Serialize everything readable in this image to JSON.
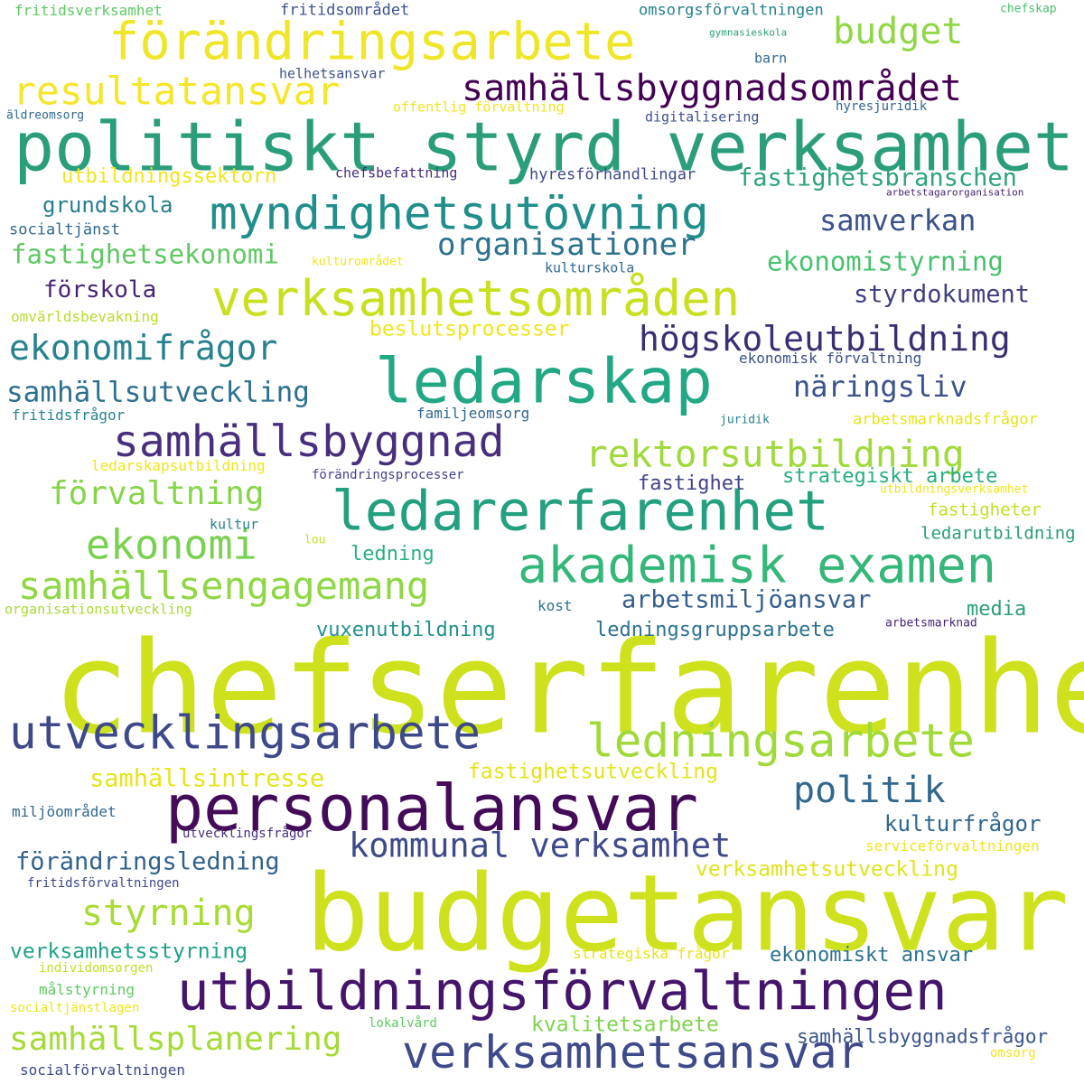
{
  "colors": {
    "background": "#ffffff",
    "palette": [
      "#440154",
      "#3b528b",
      "#21918c",
      "#5ec962",
      "#fde725"
    ]
  },
  "words": [
    {
      "text": "chefserfarenhet",
      "color": "#cde11d"
    },
    {
      "text": "budgetansvar",
      "color": "#cde11d"
    },
    {
      "text": "politiskt styrd verksamhet",
      "color": "#2a9d7a"
    },
    {
      "text": "förändringsarbete",
      "color": "#f0e629"
    },
    {
      "text": "personalansvar",
      "color": "#440b59"
    },
    {
      "text": "utbildningsförvaltningen",
      "color": "#44156a"
    },
    {
      "text": "ledarskap",
      "color": "#22a884"
    },
    {
      "text": "ledarerfarenhet",
      "color": "#23a07f"
    },
    {
      "text": "verksamhetsområden",
      "color": "#c8e020"
    },
    {
      "text": "akademisk examen",
      "color": "#35b779"
    },
    {
      "text": "myndighetsutövning",
      "color": "#208f8c"
    },
    {
      "text": "samhällsbyggnad",
      "color": "#472f7d"
    },
    {
      "text": "utvecklingsarbete",
      "color": "#3e4989"
    },
    {
      "text": "verksamhetsansvar",
      "color": "#3e4a89"
    },
    {
      "text": "ledningsarbete",
      "color": "#a0da39"
    },
    {
      "text": "samhällsbyggnadsområdet",
      "color": "#440154"
    },
    {
      "text": "resultatansvar",
      "color": "#f5e62a"
    },
    {
      "text": "ekonomi",
      "color": "#7ad151"
    },
    {
      "text": "samhällsengagemang",
      "color": "#8fd744"
    },
    {
      "text": "rektorsutbildning",
      "color": "#9fda3a"
    },
    {
      "text": "högskoleutbildning",
      "color": "#3b2f72"
    },
    {
      "text": "ekonomifrågor",
      "color": "#26828e"
    },
    {
      "text": "kommunal verksamhet",
      "color": "#3e4a89"
    },
    {
      "text": "politik",
      "color": "#31688e"
    },
    {
      "text": "budget",
      "color": "#8fd744"
    },
    {
      "text": "organisationer",
      "color": "#2c728e"
    },
    {
      "text": "förvaltning",
      "color": "#86d549"
    },
    {
      "text": "styrning",
      "color": "#a8db34"
    },
    {
      "text": "samhällsplanering",
      "color": "#a5db36"
    },
    {
      "text": "samhällsutveckling",
      "color": "#2d708e"
    },
    {
      "text": "samverkan",
      "color": "#3b528b"
    },
    {
      "text": "näringsliv",
      "color": "#3b528b"
    },
    {
      "text": "fastighetsekonomi",
      "color": "#5ec962"
    },
    {
      "text": "ekonomistyrning",
      "color": "#48c16e"
    },
    {
      "text": "fastighetsbranschen",
      "color": "#2ea37f"
    },
    {
      "text": "styrdokument",
      "color": "#3e3f7f"
    },
    {
      "text": "arbetsmiljöansvar",
      "color": "#355f8d"
    },
    {
      "text": "samhällsintresse",
      "color": "#e4e419"
    },
    {
      "text": "fastighetsutveckling",
      "color": "#e2e418"
    },
    {
      "text": "förändringsledning",
      "color": "#33638d"
    },
    {
      "text": "kulturfrågor",
      "color": "#30678e"
    },
    {
      "text": "verksamhetsutveckling",
      "color": "#e0e31c"
    },
    {
      "text": "verksamhetsstyrning",
      "color": "#1fa187"
    },
    {
      "text": "ekonomiskt ansvar",
      "color": "#2c728e"
    },
    {
      "text": "kvalitetsarbete",
      "color": "#7fd34e"
    },
    {
      "text": "samhällsbyggnadsfrågor",
      "color": "#39548b"
    },
    {
      "text": "utbildningssektorn",
      "color": "#f0e51c"
    },
    {
      "text": "grundskola",
      "color": "#277f8e"
    },
    {
      "text": "förskola",
      "color": "#482475"
    },
    {
      "text": "beslutsprocesser",
      "color": "#f0e51c"
    },
    {
      "text": "vuxenutbildning",
      "color": "#21918c"
    },
    {
      "text": "ledningsgruppsarbete",
      "color": "#2c728e"
    },
    {
      "text": "fastighet",
      "color": "#414487"
    },
    {
      "text": "strategiskt arbete",
      "color": "#28ae80"
    },
    {
      "text": "media",
      "color": "#2a9d7a"
    },
    {
      "text": "ledning",
      "color": "#2ab07f"
    },
    {
      "text": "ledarutbildning",
      "color": "#2a9d7a"
    },
    {
      "text": "fastigheter",
      "color": "#c2df23"
    },
    {
      "text": "arbetsmarknadsfrågor",
      "color": "#e6e31a"
    },
    {
      "text": "socialtjänst",
      "color": "#31688e"
    },
    {
      "text": "fritidsverksamhet",
      "color": "#5ec962"
    },
    {
      "text": "fritidsområdet",
      "color": "#3b528b"
    },
    {
      "text": "omsorgsförvaltningen",
      "color": "#26828e"
    },
    {
      "text": "chefskap",
      "color": "#48c16e"
    },
    {
      "text": "gymnasieskola",
      "color": "#2a9d7a"
    },
    {
      "text": "barn",
      "color": "#31688e"
    },
    {
      "text": "helhetsansvar",
      "color": "#3b528b"
    },
    {
      "text": "äldreomsorg",
      "color": "#31688e"
    },
    {
      "text": "offentlig förvaltning",
      "color": "#f0e51c"
    },
    {
      "text": "digitalisering",
      "color": "#3b528b"
    },
    {
      "text": "hyresjuridik",
      "color": "#31688e"
    },
    {
      "text": "chefsbefattning",
      "color": "#472d7b"
    },
    {
      "text": "hyresförhandlingar",
      "color": "#3e4989"
    },
    {
      "text": "arbetstagarorganisation",
      "color": "#482475"
    },
    {
      "text": "kulturområdet",
      "color": "#f0e51c"
    },
    {
      "text": "kulturskola",
      "color": "#31688e"
    },
    {
      "text": "omvärldsbevakning",
      "color": "#b5de2b"
    },
    {
      "text": "ekonomisk förvaltning",
      "color": "#3b528b"
    },
    {
      "text": "fritidsfrågor",
      "color": "#26828e"
    },
    {
      "text": "familjeomsorg",
      "color": "#31688e"
    },
    {
      "text": "juridik",
      "color": "#26828e"
    },
    {
      "text": "ledarskapsutbildning",
      "color": "#f0e51c"
    },
    {
      "text": "förändringsprocesser",
      "color": "#414487"
    },
    {
      "text": "utbildningsverksamhet",
      "color": "#f0e51c"
    },
    {
      "text": "kultur",
      "color": "#26828e"
    },
    {
      "text": "lou",
      "color": "#c8e020"
    },
    {
      "text": "organisationsutveckling",
      "color": "#a8db34"
    },
    {
      "text": "kost",
      "color": "#2c728e"
    },
    {
      "text": "arbetsmarknad",
      "color": "#482475"
    },
    {
      "text": "miljöområdet",
      "color": "#31688e"
    },
    {
      "text": "utvecklingsfrågor",
      "color": "#472d7b"
    },
    {
      "text": "serviceförvaltningen",
      "color": "#f0e51c"
    },
    {
      "text": "fritidsförvaltningen",
      "color": "#3e4989"
    },
    {
      "text": "strategiska frågor",
      "color": "#e6e31a"
    },
    {
      "text": "individomsorgen",
      "color": "#c2df23"
    },
    {
      "text": "målstyrning",
      "color": "#5ec962"
    },
    {
      "text": "socialtjänstlagen",
      "color": "#f0e51c"
    },
    {
      "text": "lokalvård",
      "color": "#5ec962"
    },
    {
      "text": "omsorg",
      "color": "#f0e51c"
    },
    {
      "text": "socialförvaltningen",
      "color": "#3e4989"
    }
  ]
}
